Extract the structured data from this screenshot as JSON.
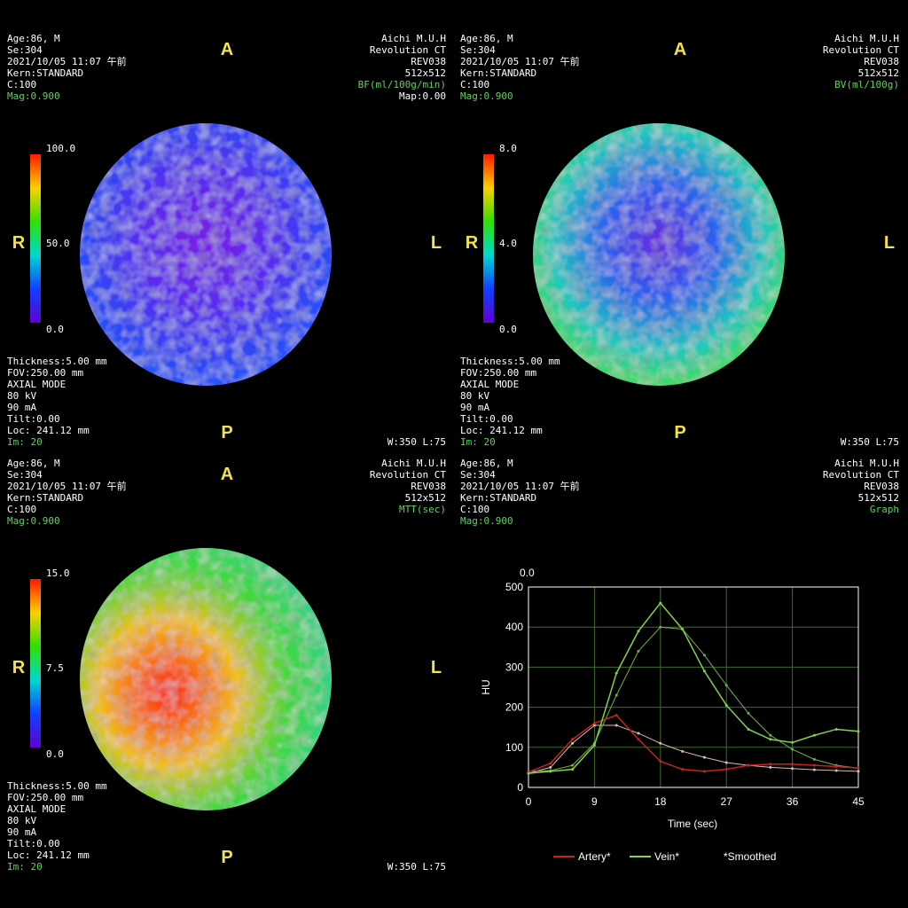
{
  "panels": [
    {
      "top_left": [
        "Age:86, M",
        "Se:304",
        "2021/10/05 11:07 午前",
        "Kern:STANDARD",
        "C:100",
        "Mag:0.900"
      ],
      "top_right": [
        "Aichi M.U.H",
        "Revolution CT",
        "REV038",
        "512x512",
        "BF(ml/100g/min)",
        "Map:0.00"
      ],
      "bottom_left": [
        "Thickness:5.00 mm",
        "FOV:250.00 mm",
        "AXIAL MODE",
        "80 kV",
        "90 mA",
        "Tilt:0.00",
        "Loc: 241.12 mm",
        "Im: 20"
      ],
      "bottom_right": "W:350 L:75",
      "anterior": "A",
      "posterior": "P",
      "right": "R",
      "left": "L",
      "colorbar": [
        "100.0",
        "50.0",
        "0.0"
      ]
    },
    {
      "top_left": [
        "Age:86, M",
        "Se:304",
        "2021/10/05 11:07 午前",
        "Kern:STANDARD",
        "C:100",
        "Mag:0.900"
      ],
      "top_right": [
        "Aichi M.U.H",
        "Revolution CT",
        "REV038",
        "512x512",
        "BV(ml/100g)"
      ],
      "bottom_left": [
        "Thickness:5.00 mm",
        "FOV:250.00 mm",
        "AXIAL MODE",
        "80 kV",
        "90 mA",
        "Tilt:0.00",
        "Loc: 241.12 mm",
        "Im: 20"
      ],
      "bottom_right": "W:350 L:75",
      "anterior": "A",
      "posterior": "P",
      "right": "R",
      "left": "L",
      "colorbar": [
        "8.0",
        "4.0",
        "0.0"
      ]
    },
    {
      "top_left": [
        "Age:86, M",
        "Se:304",
        "2021/10/05 11:07 午前",
        "Kern:STANDARD",
        "C:100",
        "Mag:0.900"
      ],
      "top_right": [
        "Aichi M.U.H",
        "Revolution CT",
        "REV038",
        "512x512",
        "MTT(sec)"
      ],
      "bottom_left": [
        "Thickness:5.00 mm",
        "FOV:250.00 mm",
        "AXIAL MODE",
        "80 kV",
        "90 mA",
        "Tilt:0.00",
        "Loc: 241.12 mm",
        "Im: 20"
      ],
      "bottom_right": "W:350 L:75",
      "anterior": "A",
      "posterior": "P",
      "right": "R",
      "left": "L",
      "colorbar": [
        "15.0",
        "7.5",
        "0.0"
      ]
    },
    {
      "top_left": [
        "Age:86, M",
        "Se:304",
        "2021/10/05 11:07 午前",
        "Kern:STANDARD",
        "C:100",
        "Mag:0.900"
      ],
      "top_right": [
        "Aichi M.U.H",
        "Revolution CT",
        "REV038",
        "512x512",
        "Graph"
      ]
    }
  ],
  "chart_data": {
    "type": "line",
    "corner_label": "0.0",
    "xlabel": "Time (sec)",
    "ylabel": "HU",
    "note": "*Smoothed",
    "x": [
      0,
      3,
      6,
      9,
      12,
      15,
      18,
      21,
      24,
      27,
      30,
      33,
      36,
      39,
      42,
      45
    ],
    "xlim": [
      0,
      45
    ],
    "xticks": [
      0,
      9,
      18,
      27,
      36,
      45
    ],
    "ylim": [
      0,
      500
    ],
    "yticks": [
      0,
      100,
      200,
      300,
      400,
      500
    ],
    "grid": true,
    "series": [
      {
        "name": "Artery*",
        "color": "#c8231c",
        "values": [
          38,
          60,
          120,
          160,
          180,
          120,
          65,
          45,
          40,
          45,
          55,
          58,
          58,
          55,
          52,
          48
        ]
      },
      {
        "name": "Vein*",
        "color": "#7fd44a",
        "values": [
          35,
          40,
          45,
          105,
          285,
          390,
          460,
          395,
          290,
          205,
          145,
          120,
          112,
          130,
          145,
          140
        ]
      },
      {
        "color": "#d9bcb4",
        "values": [
          35,
          50,
          110,
          155,
          155,
          135,
          110,
          90,
          75,
          62,
          55,
          50,
          47,
          44,
          42,
          40
        ]
      },
      {
        "color": "#6fb24a",
        "values": [
          40,
          42,
          55,
          110,
          230,
          340,
          400,
          395,
          330,
          255,
          185,
          130,
          95,
          70,
          55,
          48
        ]
      }
    ]
  }
}
